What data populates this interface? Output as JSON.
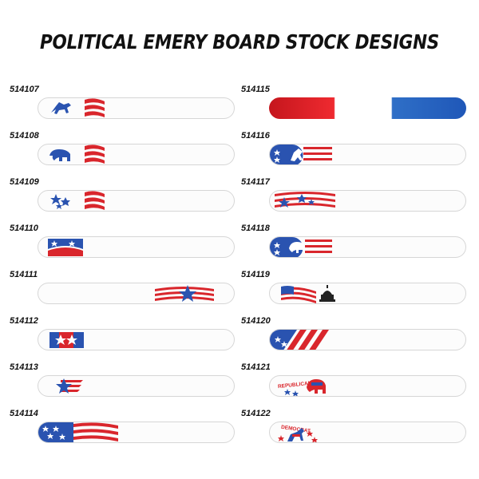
{
  "title": "POLITICAL EMERY BOARD STOCK DESIGNS",
  "colors": {
    "red": "#d9262c",
    "blue": "#2a53b0",
    "white": "#ffffff"
  },
  "left_items": [
    {
      "sku": "514107",
      "design": "donkey-flag"
    },
    {
      "sku": "514108",
      "design": "elephant-flag"
    },
    {
      "sku": "514109",
      "design": "stars-flag"
    },
    {
      "sku": "514110",
      "design": "flag-patch"
    },
    {
      "sku": "514111",
      "design": "star-ribbon"
    },
    {
      "sku": "514112",
      "design": "two-star-banner"
    },
    {
      "sku": "514113",
      "design": "star-stripes"
    },
    {
      "sku": "514114",
      "design": "wavy-flag"
    }
  ],
  "right_items": [
    {
      "sku": "514115",
      "design": "red-white-blue-gradient"
    },
    {
      "sku": "514116",
      "design": "donkey-circle-flag"
    },
    {
      "sku": "514117",
      "design": "waving-flag-stars"
    },
    {
      "sku": "514118",
      "design": "elephant-circle-flag"
    },
    {
      "sku": "514119",
      "design": "flag-capitol"
    },
    {
      "sku": "514120",
      "design": "blue-stars-stripes"
    },
    {
      "sku": "514121",
      "design": "republican-elephant",
      "label": "REPUBLICAN"
    },
    {
      "sku": "514122",
      "design": "democrat-donkey",
      "label": "DEMOCRAT"
    }
  ]
}
